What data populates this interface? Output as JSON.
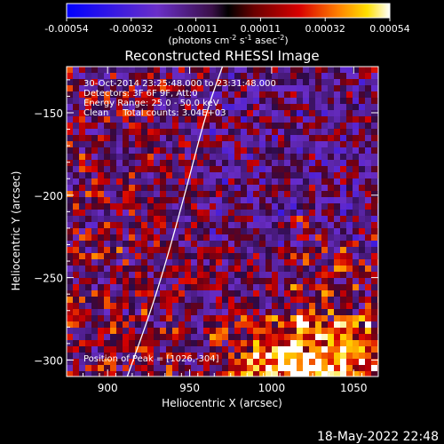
{
  "chart_data": {
    "type": "heatmap",
    "title": "Reconstructed RHESSI Image",
    "xlabel": "Heliocentric X (arcsec)",
    "ylabel": "Heliocentric Y (arcsec)",
    "xlim": [
      875,
      1065
    ],
    "ylim": [
      -310,
      -122
    ],
    "xticks": [
      900,
      950,
      1000,
      1050
    ],
    "yticks": [
      -150,
      -200,
      -250,
      -300
    ],
    "colorbar": {
      "ticks": [
        "-0.00054",
        "-0.00032",
        "-0.00011",
        "0.00011",
        "0.00032",
        "0.00054"
      ],
      "units_prefix": "(photons cm",
      "units_exp1": "-2",
      "units_mid": " s",
      "units_exp2": "-1",
      "units_mid2": " asec",
      "units_exp3": "-2",
      "units_suffix": ")",
      "min": -0.00054,
      "max": 0.00054
    },
    "annotations": [
      "30-Oct-2014 23:25:48.000 to 23:31:48.000",
      "Detectors: 3F 6F 9F, Att:0",
      "Energy Range: 25.0 - 50.0 keV",
      "Clean     Total counts: 3.04E+03"
    ],
    "peak_label": "Position of Peak = [1026,-304]",
    "peak": [
      1026,
      -304
    ],
    "limb_curve": [
      [
        912,
        -310
      ],
      [
        930,
        -260
      ],
      [
        947,
        -200
      ],
      [
        960,
        -150
      ],
      [
        970,
        -122
      ]
    ],
    "footer_date": "18-May-2022 22:48"
  }
}
